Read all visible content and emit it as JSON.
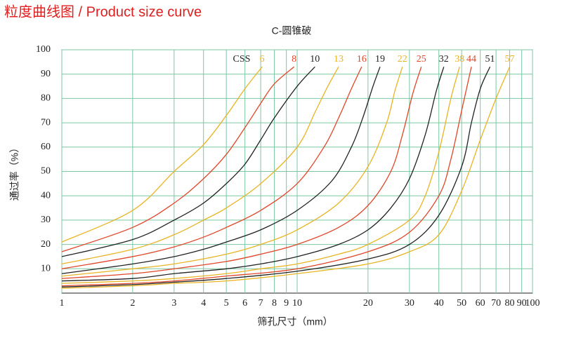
{
  "chart_data": {
    "type": "line",
    "header": "粒度曲线图 / Product size curve",
    "title": "C-圆锥破",
    "x_label": "筛孔尺寸（mm）",
    "y_label": "通过率（%）",
    "legend_title": "CSS",
    "log_x": true,
    "grid": true,
    "xlim": [
      1,
      100
    ],
    "ylim": [
      0,
      100
    ],
    "xticks": [
      1,
      2,
      3,
      4,
      5,
      6,
      7,
      8,
      9,
      10,
      20,
      30,
      40,
      50,
      60,
      70,
      80,
      90,
      100
    ],
    "yticks": [
      10,
      20,
      30,
      40,
      50,
      60,
      70,
      80,
      90,
      100
    ],
    "series": [
      {
        "name": "6",
        "color": "#e8b424",
        "x": [
          1,
          2,
          3,
          4,
          5,
          6,
          7.1
        ],
        "values": [
          21,
          34,
          50,
          61,
          73,
          84,
          93
        ]
      },
      {
        "name": "8",
        "color": "#e0462a",
        "x": [
          1,
          2,
          3,
          4,
          5,
          6,
          7,
          8,
          9.7
        ],
        "values": [
          17,
          27,
          37,
          47,
          57,
          68,
          78,
          86,
          93
        ]
      },
      {
        "name": "10",
        "color": "#222222",
        "x": [
          1,
          2,
          3,
          4,
          5,
          6,
          7,
          8,
          10,
          11.9
        ],
        "values": [
          15,
          22,
          30,
          37,
          45,
          53,
          63,
          72,
          85,
          93
        ]
      },
      {
        "name": "13",
        "color": "#e8b424",
        "x": [
          1,
          2,
          3,
          4,
          5,
          7,
          10,
          12,
          13.5,
          15
        ],
        "values": [
          12,
          18,
          24,
          30,
          35,
          45,
          60,
          75,
          85,
          93
        ]
      },
      {
        "name": "16",
        "color": "#e0462a",
        "x": [
          1,
          2,
          3,
          4,
          5,
          7,
          10,
          13,
          15,
          17,
          18.8
        ],
        "values": [
          10,
          15,
          19,
          23,
          27,
          34,
          45,
          60,
          72,
          84,
          93
        ]
      },
      {
        "name": "19",
        "color": "#222222",
        "x": [
          1,
          2,
          3,
          4,
          5,
          7,
          10,
          14,
          17,
          19,
          21,
          22.5
        ],
        "values": [
          8,
          12,
          15,
          18,
          21,
          26,
          34,
          46,
          60,
          72,
          85,
          93
        ]
      },
      {
        "name": "22",
        "color": "#e8b424",
        "x": [
          1,
          2,
          3,
          5,
          7,
          10,
          15,
          20,
          24,
          26,
          28
        ],
        "values": [
          7,
          10,
          12,
          16,
          20,
          26,
          37,
          52,
          70,
          83,
          93
        ]
      },
      {
        "name": "25",
        "color": "#e0462a",
        "x": [
          1,
          2,
          3,
          5,
          7,
          10,
          15,
          20,
          25,
          28,
          31,
          33.7
        ],
        "values": [
          6,
          8,
          10,
          13,
          16,
          20,
          27,
          36,
          50,
          65,
          82,
          93
        ]
      },
      {
        "name": "32",
        "color": "#222222",
        "x": [
          1,
          2,
          3,
          5,
          7,
          10,
          15,
          20,
          25,
          30,
          35,
          39,
          42
        ],
        "values": [
          5,
          6,
          8,
          10,
          12,
          15,
          20,
          26,
          35,
          47,
          65,
          83,
          93
        ]
      },
      {
        "name": "38",
        "color": "#e8b424",
        "x": [
          1,
          2,
          3,
          5,
          7,
          10,
          15,
          20,
          30,
          35,
          40,
          45,
          49
        ],
        "values": [
          4,
          5,
          6,
          8,
          10,
          12,
          16,
          20,
          30,
          40,
          58,
          80,
          93
        ]
      },
      {
        "name": "44",
        "color": "#e0462a",
        "x": [
          1,
          2,
          3,
          5,
          10,
          20,
          30,
          40,
          45,
          50,
          55
        ],
        "values": [
          3,
          4,
          5,
          7,
          10,
          17,
          25,
          40,
          55,
          75,
          93
        ]
      },
      {
        "name": "51",
        "color": "#222222",
        "x": [
          1,
          2,
          3,
          5,
          10,
          20,
          30,
          40,
          50,
          55,
          60,
          66
        ],
        "values": [
          2.5,
          3.5,
          4.5,
          6,
          9,
          14,
          20,
          32,
          52,
          70,
          84,
          93
        ]
      },
      {
        "name": "57",
        "color": "#e8b424",
        "x": [
          1,
          2,
          3,
          5,
          10,
          20,
          30,
          40,
          50,
          60,
          70,
          80
        ],
        "values": [
          2,
          3,
          4,
          5,
          8,
          12,
          17,
          24,
          42,
          63,
          80,
          93
        ]
      }
    ]
  }
}
